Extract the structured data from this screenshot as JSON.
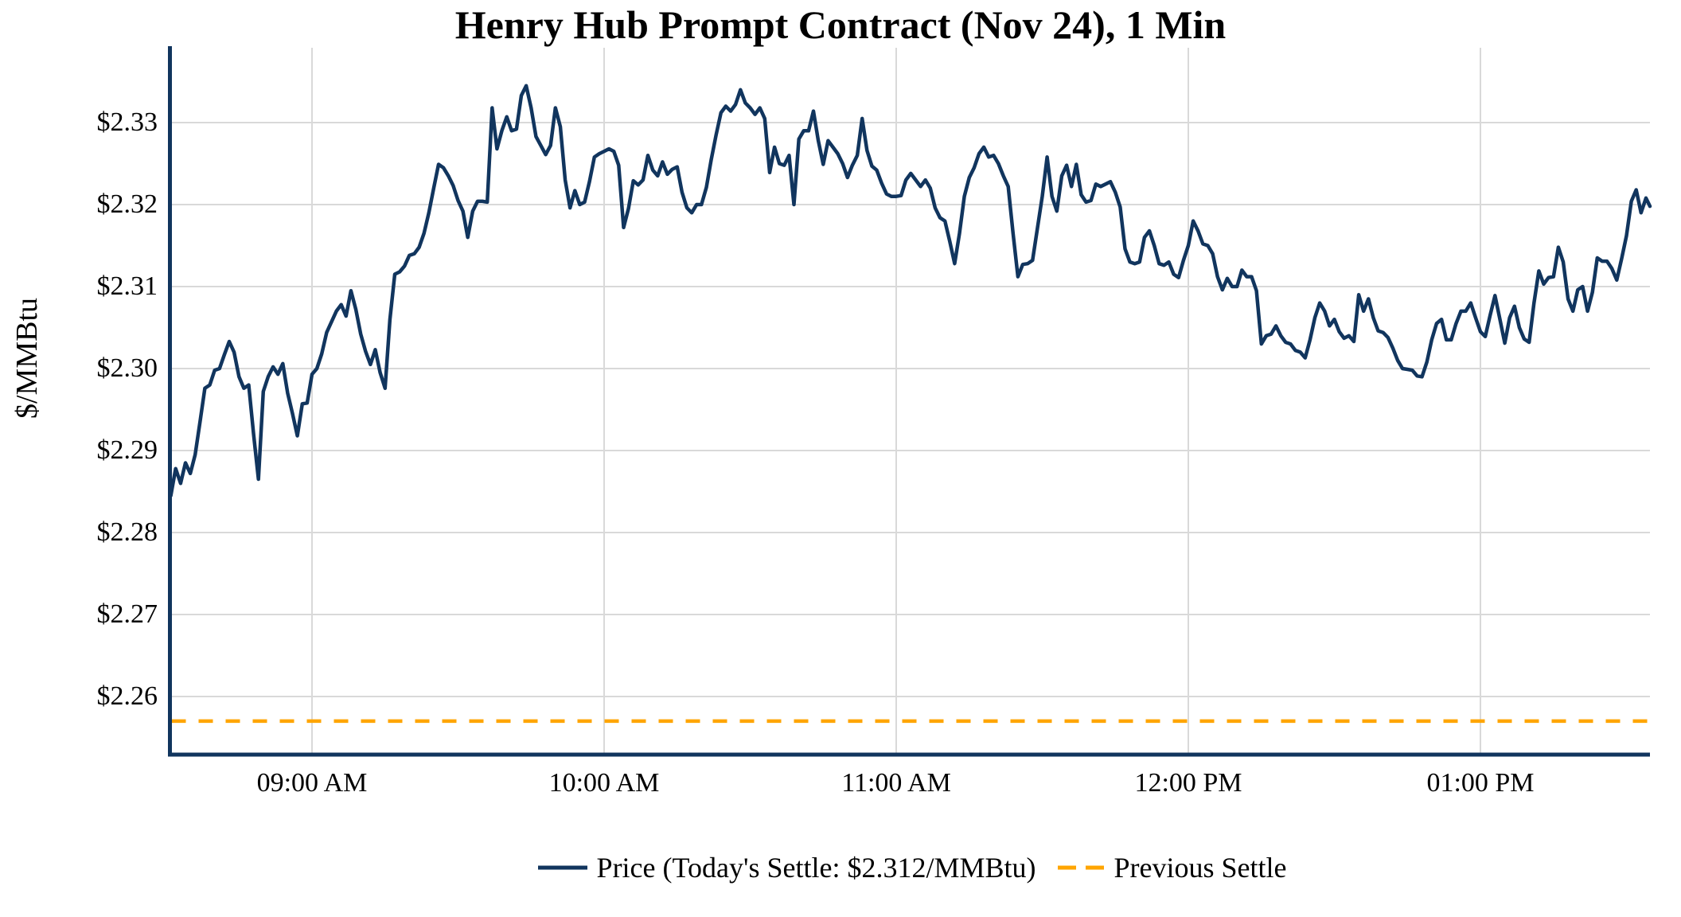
{
  "chart_data": {
    "type": "line",
    "title": "Henry Hub Prompt Contract (Nov 24), 1 Min",
    "ylabel": "$/MMBtu",
    "today_settle_text": "$2.312/MMBtu",
    "grid": true,
    "legend_position": "bottom",
    "ylim": [
      2.253,
      2.339
    ],
    "y_ticks": [
      {
        "label": "$2.33",
        "value": 2.33
      },
      {
        "label": "$2.32",
        "value": 2.32
      },
      {
        "label": "$2.31",
        "value": 2.31
      },
      {
        "label": "$2.30",
        "value": 2.3
      },
      {
        "label": "$2.29",
        "value": 2.29
      },
      {
        "label": "$2.28",
        "value": 2.28
      },
      {
        "label": "$2.27",
        "value": 2.27
      },
      {
        "label": "$2.26",
        "value": 2.26
      }
    ],
    "x_ticks": [
      {
        "label": "09:00 AM",
        "minute": 29
      },
      {
        "label": "10:00 AM",
        "minute": 89
      },
      {
        "label": "11:00 AM",
        "minute": 149
      },
      {
        "label": "12:00 PM",
        "minute": 209
      },
      {
        "label": "01:00 PM",
        "minute": 269
      }
    ],
    "x_start": "08:31 AM",
    "x_interval_minutes": 1,
    "xlim_minutes": [
      0,
      304
    ],
    "colors": {
      "price": "#11355e",
      "previous_settle": "#ffa500",
      "grid": "#d9d9d9",
      "spine": "#11355e"
    },
    "series": [
      {
        "name": "Price (Today's Settle: $2.312/MMBtu)",
        "color": "#11355e",
        "style": "solid",
        "values": [
          2.2845,
          2.2878,
          2.286,
          2.2885,
          2.2872,
          2.2895,
          2.2935,
          2.2976,
          2.298,
          2.2998,
          2.3,
          2.3017,
          2.3033,
          2.302,
          2.299,
          2.2976,
          2.298,
          2.292,
          2.2865,
          2.2972,
          2.299,
          2.3002,
          2.2993,
          2.3006,
          2.297,
          2.2945,
          2.2918,
          2.2957,
          2.2958,
          2.2993,
          2.3,
          2.3018,
          2.3044,
          2.3057,
          2.307,
          2.3078,
          2.3064,
          2.3095,
          2.3072,
          2.3042,
          2.3021,
          2.3005,
          2.3023,
          2.2995,
          2.2976,
          2.306,
          2.3115,
          2.3118,
          2.3125,
          2.3138,
          2.314,
          2.3148,
          2.3165,
          2.319,
          2.322,
          2.3249,
          2.3245,
          2.3235,
          2.3223,
          2.3205,
          2.3192,
          2.316,
          2.3192,
          2.3204,
          2.3204,
          2.3203,
          2.3318,
          2.3268,
          2.329,
          2.3307,
          2.329,
          2.3292,
          2.3333,
          2.3345,
          2.3318,
          2.3283,
          2.3272,
          2.3261,
          2.3272,
          2.3318,
          2.3295,
          2.323,
          2.3196,
          2.3217,
          2.32,
          2.3203,
          2.3228,
          2.3258,
          2.3262,
          2.3265,
          2.3268,
          2.3265,
          2.3248,
          2.3172,
          2.3195,
          2.3229,
          2.3224,
          2.323,
          2.326,
          2.3242,
          2.3235,
          2.3252,
          2.3237,
          2.3243,
          2.3246,
          2.3215,
          2.3196,
          2.319,
          2.32,
          2.32,
          2.3221,
          2.3255,
          2.3285,
          2.3312,
          2.332,
          2.3314,
          2.3322,
          2.334,
          2.3324,
          2.3318,
          2.331,
          2.3318,
          2.3305,
          2.3239,
          2.327,
          2.325,
          2.3248,
          2.326,
          2.32,
          2.328,
          2.329,
          2.329,
          2.3314,
          2.3278,
          2.3249,
          2.3278,
          2.327,
          2.3262,
          2.325,
          2.3233,
          2.3248,
          2.326,
          2.3305,
          2.3266,
          2.3247,
          2.3242,
          2.3226,
          2.3213,
          2.321,
          2.321,
          2.3211,
          2.323,
          2.3238,
          2.323,
          2.3222,
          2.323,
          2.322,
          2.3196,
          2.3184,
          2.318,
          2.3155,
          2.3128,
          2.3165,
          2.321,
          2.3233,
          2.3245,
          2.3262,
          2.327,
          2.3258,
          2.326,
          2.325,
          2.3235,
          2.3222,
          2.3165,
          2.3112,
          2.3127,
          2.3128,
          2.3132,
          2.3171,
          2.321,
          2.3258,
          2.321,
          2.3192,
          2.3235,
          2.3248,
          2.3222,
          2.3249,
          2.3212,
          2.3203,
          2.3205,
          2.3225,
          2.3222,
          2.3225,
          2.3228,
          2.3215,
          2.3197,
          2.3146,
          2.313,
          2.3128,
          2.313,
          2.316,
          2.3168,
          2.315,
          2.3128,
          2.3126,
          2.313,
          2.3115,
          2.3111,
          2.3132,
          2.315,
          2.318,
          2.3168,
          2.3152,
          2.315,
          2.314,
          2.3112,
          2.3096,
          2.311,
          2.31,
          2.31,
          2.312,
          2.3112,
          2.3112,
          2.3095,
          2.303,
          2.304,
          2.3042,
          2.3052,
          2.304,
          2.3032,
          2.303,
          2.3022,
          2.302,
          2.3013,
          2.3035,
          2.3062,
          2.308,
          2.307,
          2.3052,
          2.306,
          2.3045,
          2.3037,
          2.304,
          2.3033,
          2.309,
          2.307,
          2.3085,
          2.3062,
          2.3046,
          2.3044,
          2.3038,
          2.3025,
          2.301,
          2.3,
          2.2999,
          2.2998,
          2.2991,
          2.299,
          2.3008,
          2.3035,
          2.3055,
          2.306,
          2.3035,
          2.3035,
          2.3055,
          2.307,
          2.307,
          2.308,
          2.3062,
          2.3045,
          2.3039,
          2.3065,
          2.3089,
          2.306,
          2.3031,
          2.3062,
          2.3076,
          2.305,
          2.3036,
          2.3032,
          2.308,
          2.3119,
          2.3103,
          2.3111,
          2.3112,
          2.3148,
          2.313,
          2.3085,
          2.307,
          2.3096,
          2.31,
          2.307,
          2.3093,
          2.3135,
          2.3131,
          2.3131,
          2.3122,
          2.3108,
          2.3134,
          2.3162,
          2.3204,
          2.3218,
          2.319,
          2.3208,
          2.3198
        ]
      },
      {
        "name": "Previous Settle",
        "color": "#ffa500",
        "style": "dashed",
        "value": 2.257
      }
    ]
  }
}
